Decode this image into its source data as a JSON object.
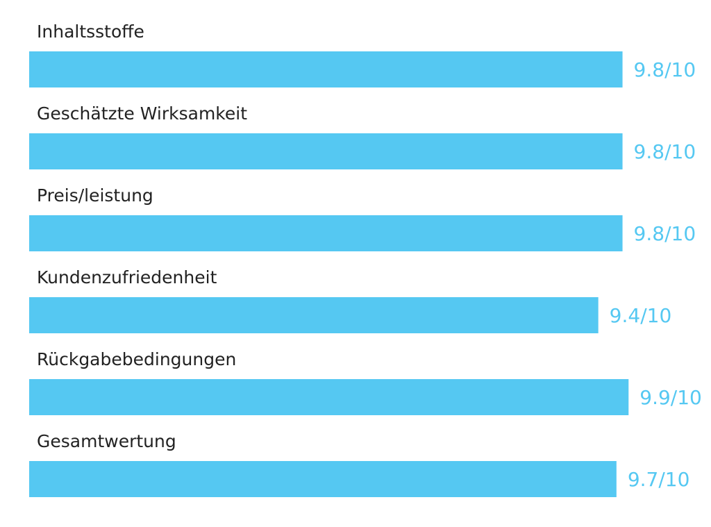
{
  "chart_data": {
    "type": "bar",
    "orientation": "horizontal",
    "title": "",
    "xlabel": "",
    "ylabel": "",
    "xlim": [
      0,
      10
    ],
    "grid": false,
    "legend": "none",
    "bar_color": "#55c8f2",
    "label_color": "#222222",
    "categories": [
      "Inhaltsstoffe",
      "Geschätzte Wirksamkeit",
      "Preis/leistung",
      "Kundenzufriedenheit",
      "Rückgabebedingungen",
      "Gesamtwertung"
    ],
    "values": [
      9.8,
      9.8,
      9.8,
      9.4,
      9.9,
      9.7
    ],
    "value_labels": [
      "9.8/10",
      "9.8/10",
      "9.8/10",
      "9.4/10",
      "9.9/10",
      "9.7/10"
    ]
  }
}
